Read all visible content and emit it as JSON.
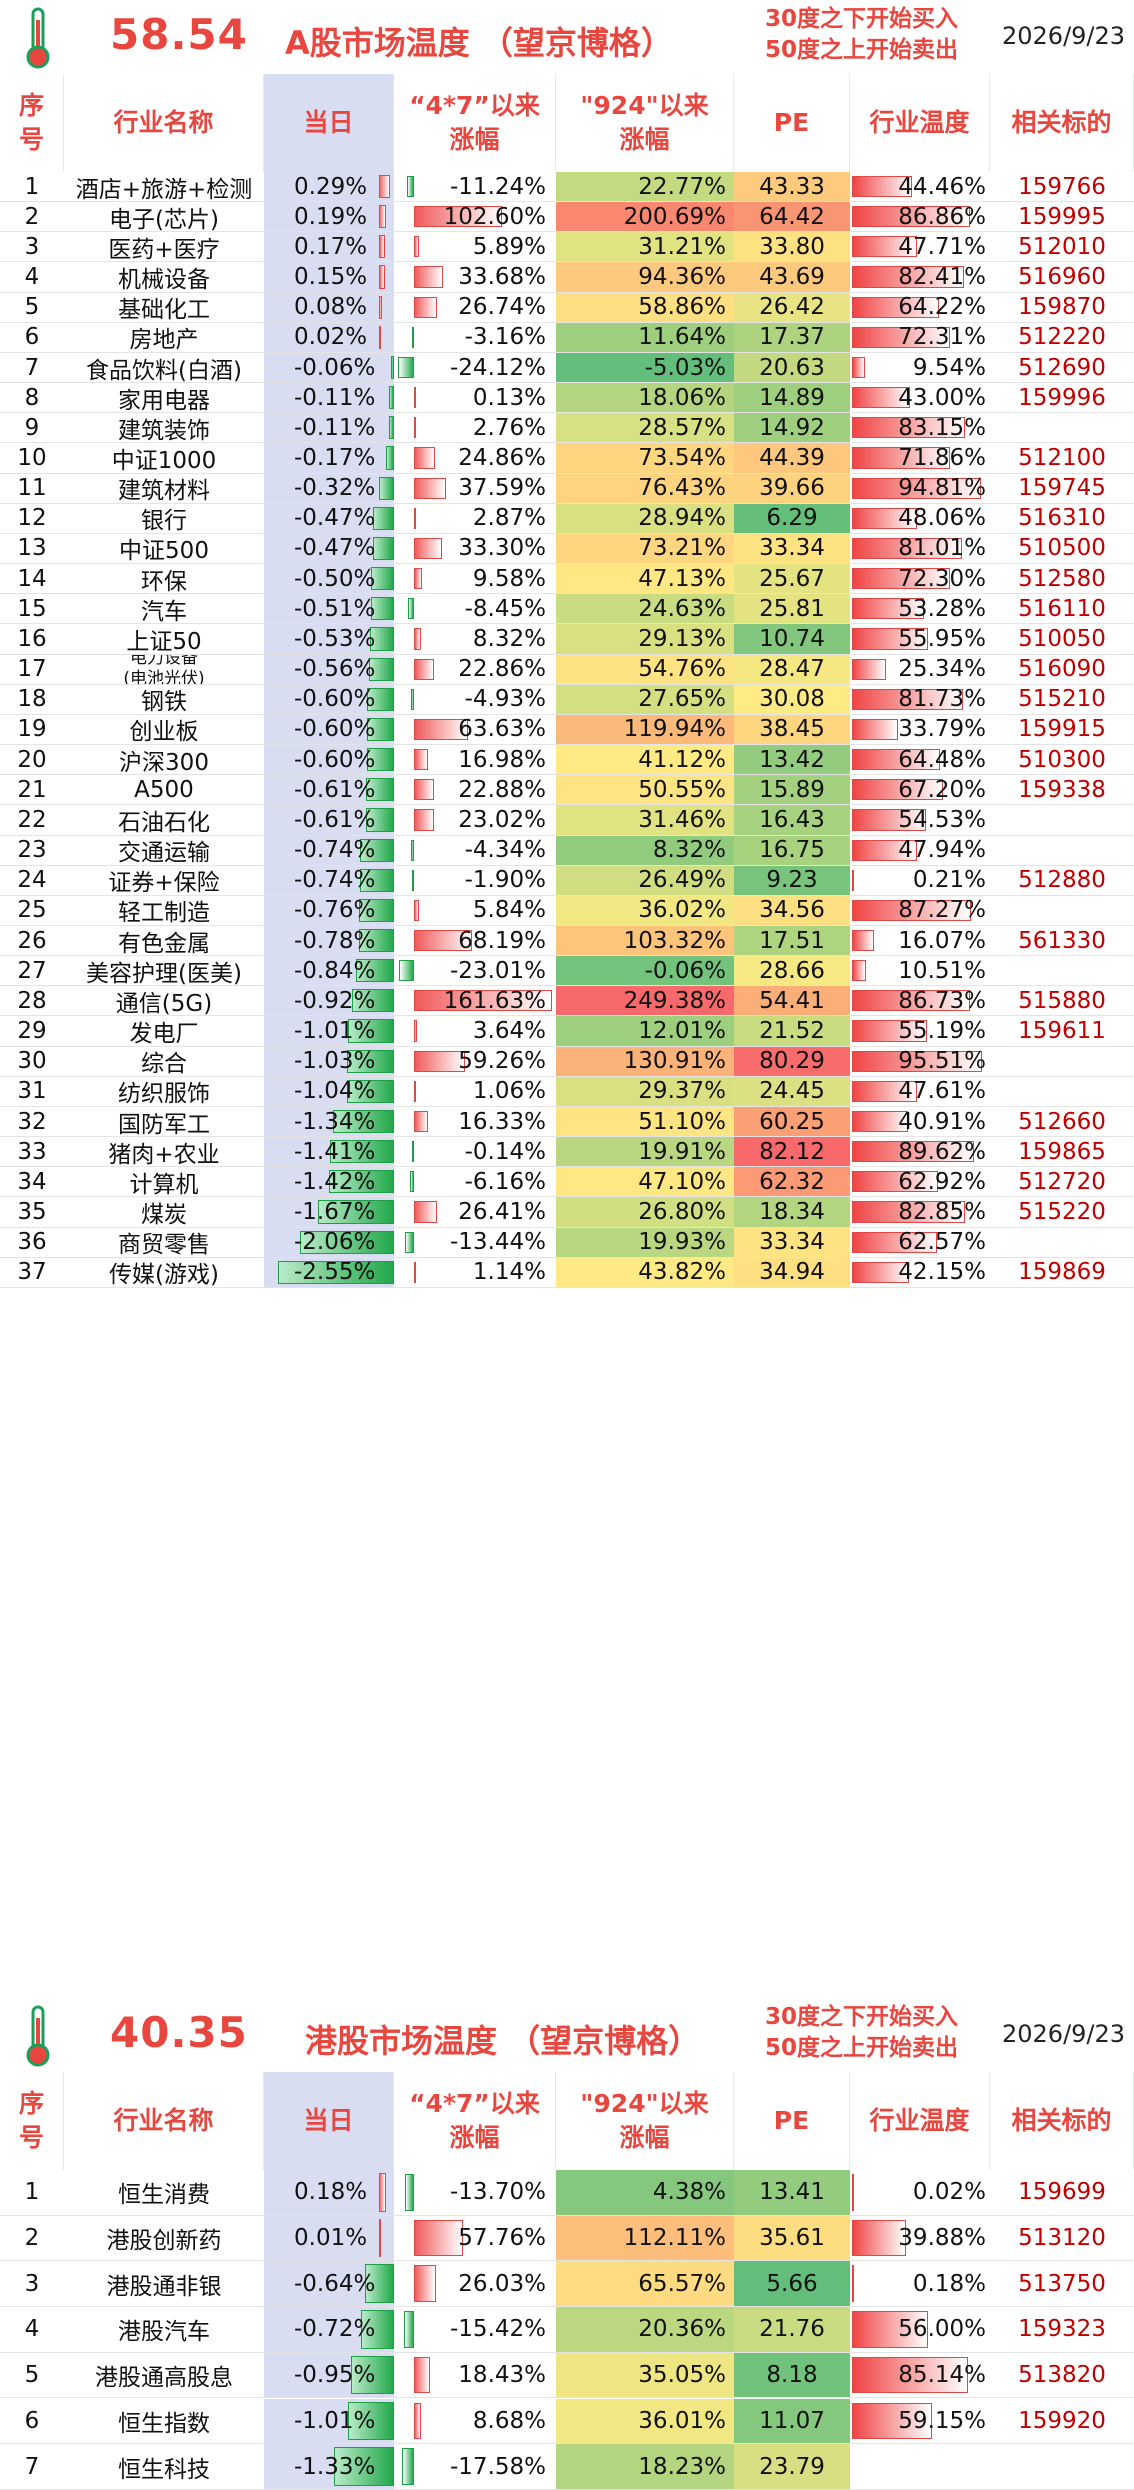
{
  "a_share": {
    "temperature": "58.54",
    "title": "A股市场温度 （望京博格）",
    "note_line1": "30度之下开始买入",
    "note_line2": "50度之上开始卖出",
    "date": "2026/9/23",
    "headers": {
      "idx": "序号",
      "name": "行业名称",
      "day": "当日",
      "p47": "“4*7”以来涨幅",
      "p924": "\"924\"以来涨幅",
      "pe": "PE",
      "temp": "行业温度",
      "code": "相关标的"
    },
    "rows": [
      {
        "idx": "1",
        "name": "酒店+旅游+检测",
        "day": "0.29%",
        "p47": "-11.24%",
        "p924": "22.77%",
        "pe": "43.33",
        "temp": "44.46%",
        "code": "159766"
      },
      {
        "idx": "2",
        "name": "电子(芯片)",
        "day": "0.19%",
        "p47": "102.60%",
        "p924": "200.69%",
        "pe": "64.42",
        "temp": "86.86%",
        "code": "159995"
      },
      {
        "idx": "3",
        "name": "医药+医疗",
        "day": "0.17%",
        "p47": "5.89%",
        "p924": "31.21%",
        "pe": "33.80",
        "temp": "47.71%",
        "code": "512010"
      },
      {
        "idx": "4",
        "name": "机械设备",
        "day": "0.15%",
        "p47": "33.68%",
        "p924": "94.36%",
        "pe": "43.69",
        "temp": "82.41%",
        "code": "516960"
      },
      {
        "idx": "5",
        "name": "基础化工",
        "day": "0.08%",
        "p47": "26.74%",
        "p924": "58.86%",
        "pe": "26.42",
        "temp": "64.22%",
        "code": "159870"
      },
      {
        "idx": "6",
        "name": "房地产",
        "day": "0.02%",
        "p47": "-3.16%",
        "p924": "11.64%",
        "pe": "17.37",
        "temp": "72.31%",
        "code": "512220"
      },
      {
        "idx": "7",
        "name": "食品饮料(白酒)",
        "day": "-0.06%",
        "p47": "-24.12%",
        "p924": "-5.03%",
        "pe": "20.63",
        "temp": "9.54%",
        "code": "512690"
      },
      {
        "idx": "8",
        "name": "家用电器",
        "day": "-0.11%",
        "p47": "0.13%",
        "p924": "18.06%",
        "pe": "14.89",
        "temp": "43.00%",
        "code": "159996"
      },
      {
        "idx": "9",
        "name": "建筑装饰",
        "day": "-0.11%",
        "p47": "2.76%",
        "p924": "28.57%",
        "pe": "14.92",
        "temp": "83.15%",
        "code": ""
      },
      {
        "idx": "10",
        "name": "中证1000",
        "day": "-0.17%",
        "p47": "24.86%",
        "p924": "73.54%",
        "pe": "44.39",
        "temp": "71.86%",
        "code": "512100"
      },
      {
        "idx": "11",
        "name": "建筑材料",
        "day": "-0.32%",
        "p47": "37.59%",
        "p924": "76.43%",
        "pe": "39.66",
        "temp": "94.81%",
        "code": "159745"
      },
      {
        "idx": "12",
        "name": "银行",
        "day": "-0.47%",
        "p47": "2.87%",
        "p924": "28.94%",
        "pe": "6.29",
        "temp": "48.06%",
        "code": "516310"
      },
      {
        "idx": "13",
        "name": "中证500",
        "day": "-0.47%",
        "p47": "33.30%",
        "p924": "73.21%",
        "pe": "33.34",
        "temp": "81.01%",
        "code": "510500"
      },
      {
        "idx": "14",
        "name": "环保",
        "day": "-0.50%",
        "p47": "9.58%",
        "p924": "47.13%",
        "pe": "25.67",
        "temp": "72.30%",
        "code": "512580"
      },
      {
        "idx": "15",
        "name": "汽车",
        "day": "-0.51%",
        "p47": "-8.45%",
        "p924": "24.63%",
        "pe": "25.81",
        "temp": "53.28%",
        "code": "516110"
      },
      {
        "idx": "16",
        "name": "上证50",
        "day": "-0.53%",
        "p47": "8.32%",
        "p924": "29.13%",
        "pe": "10.74",
        "temp": "55.95%",
        "code": "510050"
      },
      {
        "idx": "17",
        "name": "电力设备",
        "name2": "(电池光伏)",
        "day": "-0.56%",
        "p47": "22.86%",
        "p924": "54.76%",
        "pe": "28.47",
        "temp": "25.34%",
        "code": "516090"
      },
      {
        "idx": "18",
        "name": "钢铁",
        "day": "-0.60%",
        "p47": "-4.93%",
        "p924": "27.65%",
        "pe": "30.08",
        "temp": "81.73%",
        "code": "515210"
      },
      {
        "idx": "19",
        "name": "创业板",
        "day": "-0.60%",
        "p47": "63.63%",
        "p924": "119.94%",
        "pe": "38.45",
        "temp": "33.79%",
        "code": "159915"
      },
      {
        "idx": "20",
        "name": "沪深300",
        "day": "-0.60%",
        "p47": "16.98%",
        "p924": "41.12%",
        "pe": "13.42",
        "temp": "64.48%",
        "code": "510300"
      },
      {
        "idx": "21",
        "name": "A500",
        "day": "-0.61%",
        "p47": "22.88%",
        "p924": "50.55%",
        "pe": "15.89",
        "temp": "67.20%",
        "code": "159338"
      },
      {
        "idx": "22",
        "name": "石油石化",
        "day": "-0.61%",
        "p47": "23.02%",
        "p924": "31.46%",
        "pe": "16.43",
        "temp": "54.53%",
        "code": ""
      },
      {
        "idx": "23",
        "name": "交通运输",
        "day": "-0.74%",
        "p47": "-4.34%",
        "p924": "8.32%",
        "pe": "16.75",
        "temp": "47.94%",
        "code": ""
      },
      {
        "idx": "24",
        "name": "证券+保险",
        "day": "-0.74%",
        "p47": "-1.90%",
        "p924": "26.49%",
        "pe": "9.23",
        "temp": "0.21%",
        "code": "512880"
      },
      {
        "idx": "25",
        "name": "轻工制造",
        "day": "-0.76%",
        "p47": "5.84%",
        "p924": "36.02%",
        "pe": "34.56",
        "temp": "87.27%",
        "code": ""
      },
      {
        "idx": "26",
        "name": "有色金属",
        "day": "-0.78%",
        "p47": "68.19%",
        "p924": "103.32%",
        "pe": "17.51",
        "temp": "16.07%",
        "code": "561330"
      },
      {
        "idx": "27",
        "name": "美容护理(医美)",
        "day": "-0.84%",
        "p47": "-23.01%",
        "p924": "-0.06%",
        "pe": "28.66",
        "temp": "10.51%",
        "code": ""
      },
      {
        "idx": "28",
        "name": "通信(5G)",
        "day": "-0.92%",
        "p47": "161.63%",
        "p924": "249.38%",
        "pe": "54.41",
        "temp": "86.73%",
        "code": "515880"
      },
      {
        "idx": "29",
        "name": "发电厂",
        "day": "-1.01%",
        "p47": "3.64%",
        "p924": "12.01%",
        "pe": "21.52",
        "temp": "55.19%",
        "code": "159611"
      },
      {
        "idx": "30",
        "name": "综合",
        "day": "-1.03%",
        "p47": "59.26%",
        "p924": "130.91%",
        "pe": "80.29",
        "temp": "95.51%",
        "code": ""
      },
      {
        "idx": "31",
        "name": "纺织服饰",
        "day": "-1.04%",
        "p47": "1.06%",
        "p924": "29.37%",
        "pe": "24.45",
        "temp": "47.61%",
        "code": ""
      },
      {
        "idx": "32",
        "name": "国防军工",
        "day": "-1.34%",
        "p47": "16.33%",
        "p924": "51.10%",
        "pe": "60.25",
        "temp": "40.91%",
        "code": "512660"
      },
      {
        "idx": "33",
        "name": "猪肉+农业",
        "day": "-1.41%",
        "p47": "-0.14%",
        "p924": "19.91%",
        "pe": "82.12",
        "temp": "89.62%",
        "code": "159865"
      },
      {
        "idx": "34",
        "name": "计算机",
        "day": "-1.42%",
        "p47": "-6.16%",
        "p924": "47.10%",
        "pe": "62.32",
        "temp": "62.92%",
        "code": "512720"
      },
      {
        "idx": "35",
        "name": "煤炭",
        "day": "-1.67%",
        "p47": "26.41%",
        "p924": "26.80%",
        "pe": "18.34",
        "temp": "82.85%",
        "code": "515220"
      },
      {
        "idx": "36",
        "name": "商贸零售",
        "day": "-2.06%",
        "p47": "-13.44%",
        "p924": "19.93%",
        "pe": "33.34",
        "temp": "62.57%",
        "code": ""
      },
      {
        "idx": "37",
        "name": "传媒(游戏)",
        "day": "-2.55%",
        "p47": "1.14%",
        "p924": "43.82%",
        "pe": "34.94",
        "temp": "42.15%",
        "code": "159869"
      }
    ]
  },
  "hk_share": {
    "temperature": "40.35",
    "title": "港股市场温度 （望京博格）",
    "note_line1": "30度之下开始买入",
    "note_line2": "50度之上开始卖出",
    "date": "2026/9/23",
    "headers": {
      "idx": "序号",
      "name": "行业名称",
      "day": "当日",
      "p47": "“4*7”以来涨幅",
      "p924": "\"924\"以来涨幅",
      "pe": "PE",
      "temp": "行业温度",
      "code": "相关标的"
    },
    "rows": [
      {
        "idx": "1",
        "name": "恒生消费",
        "day": "0.18%",
        "p47": "-13.70%",
        "p924": "4.38%",
        "pe": "13.41",
        "temp": "0.02%",
        "code": "159699"
      },
      {
        "idx": "2",
        "name": "港股创新药",
        "day": "0.01%",
        "p47": "57.76%",
        "p924": "112.11%",
        "pe": "35.61",
        "temp": "39.88%",
        "code": "513120"
      },
      {
        "idx": "3",
        "name": "港股通非银",
        "day": "-0.64%",
        "p47": "26.03%",
        "p924": "65.57%",
        "pe": "5.66",
        "temp": "0.18%",
        "code": "513750"
      },
      {
        "idx": "4",
        "name": "港股汽车",
        "day": "-0.72%",
        "p47": "-15.42%",
        "p924": "20.36%",
        "pe": "21.76",
        "temp": "56.00%",
        "code": "159323"
      },
      {
        "idx": "5",
        "name": "港股通高股息",
        "day": "-0.95%",
        "p47": "18.43%",
        "p924": "35.05%",
        "pe": "8.18",
        "temp": "85.14%",
        "code": "513820"
      },
      {
        "idx": "6",
        "name": "恒生指数",
        "day": "-1.01%",
        "p47": "8.68%",
        "p924": "36.01%",
        "pe": "11.07",
        "temp": "59.15%",
        "code": "159920"
      },
      {
        "idx": "7",
        "name": "恒生科技",
        "day": "-1.33%",
        "p47": "-17.58%",
        "p924": "18.23%",
        "pe": "23.79",
        "temp": "",
        "code": ""
      }
    ]
  },
  "colors": {
    "accent": "#e8473f",
    "code": "#c00000",
    "day_bg": "#d8ddf2",
    "green": "#22a84a",
    "red": "#f04444"
  }
}
